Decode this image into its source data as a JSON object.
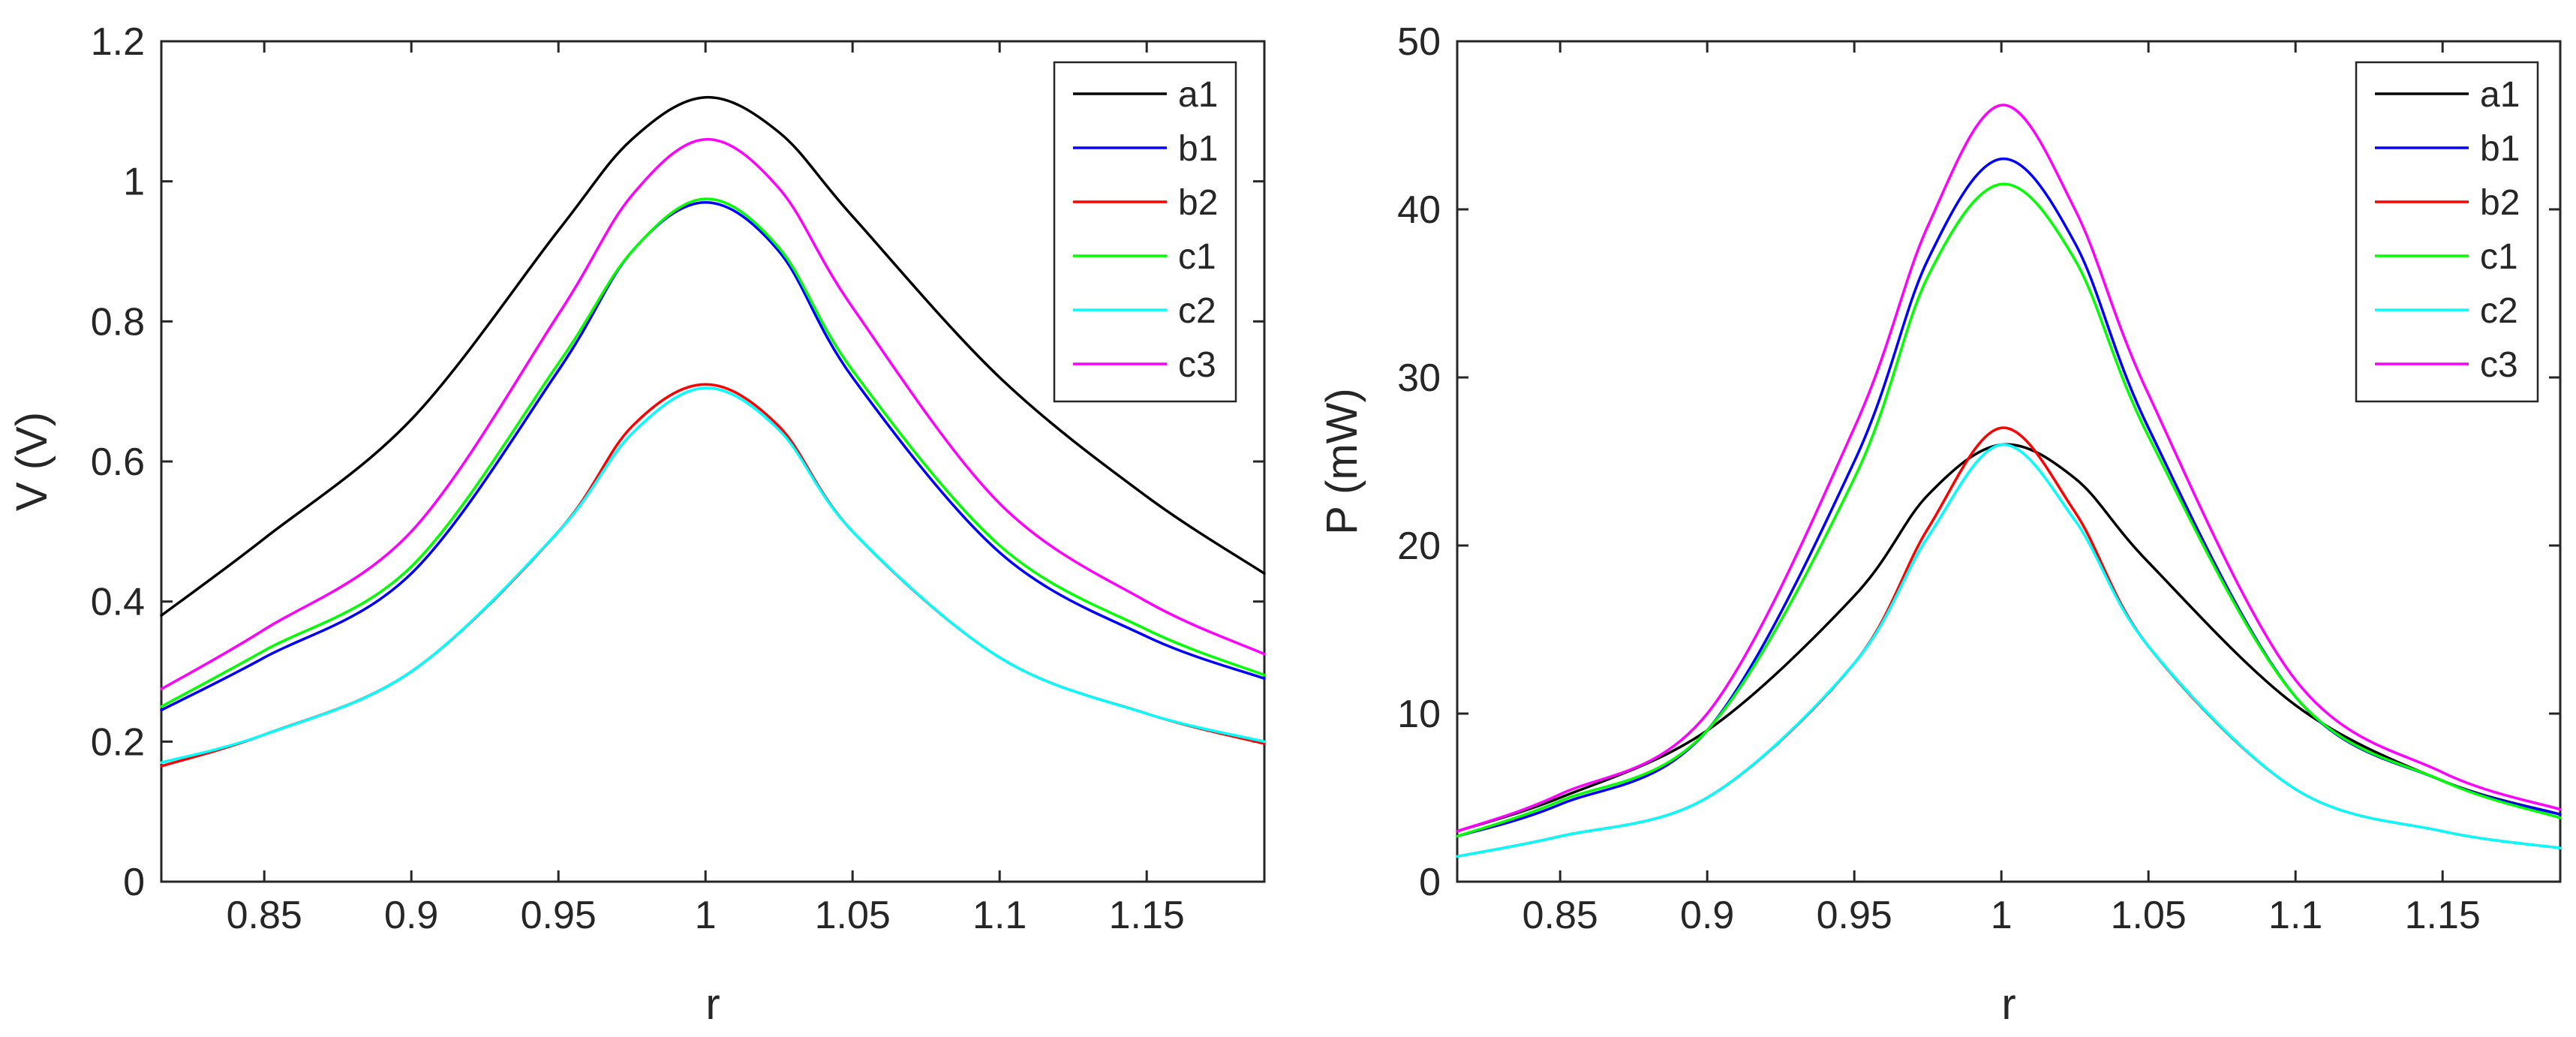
{
  "chart_data": [
    {
      "type": "line",
      "title": "",
      "xlabel": "r",
      "ylabel": "V (V)",
      "xlim": [
        0.815,
        1.19
      ],
      "ylim": [
        0,
        1.2
      ],
      "xticks": [
        0.85,
        0.9,
        0.95,
        1,
        1.05,
        1.1,
        1.15
      ],
      "xtick_labels": [
        "0.85",
        "0.9",
        "0.95",
        "1",
        "1.05",
        "1.1",
        "1.15"
      ],
      "yticks": [
        0,
        0.2,
        0.4,
        0.6,
        0.8,
        1,
        1.2
      ],
      "ytick_labels": [
        "0",
        "0.2",
        "0.4",
        "0.6",
        "0.8",
        "1",
        "1.2"
      ],
      "grid": false,
      "legend_position": "top-right",
      "x": [
        0.815,
        0.85,
        0.9,
        0.95,
        0.975,
        1.0,
        1.025,
        1.05,
        1.1,
        1.15,
        1.19
      ],
      "series": [
        {
          "name": "a1",
          "color": "#000000",
          "values": [
            0.38,
            0.49,
            0.66,
            0.93,
            1.06,
            1.12,
            1.07,
            0.95,
            0.72,
            0.55,
            0.44
          ]
        },
        {
          "name": "b1",
          "color": "#0000ff",
          "values": [
            0.245,
            0.32,
            0.44,
            0.73,
            0.9,
            0.97,
            0.9,
            0.72,
            0.47,
            0.35,
            0.29
          ]
        },
        {
          "name": "b2",
          "color": "#ff0000",
          "values": [
            0.165,
            0.21,
            0.3,
            0.5,
            0.65,
            0.71,
            0.65,
            0.5,
            0.32,
            0.24,
            0.197
          ]
        },
        {
          "name": "c1",
          "color": "#00ff00",
          "values": [
            0.25,
            0.33,
            0.45,
            0.74,
            0.9,
            0.975,
            0.905,
            0.73,
            0.48,
            0.36,
            0.295
          ]
        },
        {
          "name": "c2",
          "color": "#00ffff",
          "values": [
            0.17,
            0.21,
            0.3,
            0.5,
            0.64,
            0.705,
            0.645,
            0.5,
            0.32,
            0.24,
            0.2
          ]
        },
        {
          "name": "c3",
          "color": "#ff00ff",
          "values": [
            0.275,
            0.36,
            0.5,
            0.81,
            0.98,
            1.06,
            0.99,
            0.82,
            0.54,
            0.4,
            0.325
          ]
        }
      ]
    },
    {
      "type": "line",
      "title": "",
      "xlabel": "r",
      "ylabel": "P (mW)",
      "xlim": [
        0.815,
        1.19
      ],
      "ylim": [
        0,
        50
      ],
      "xticks": [
        0.85,
        0.9,
        0.95,
        1,
        1.05,
        1.1,
        1.15
      ],
      "xtick_labels": [
        "0.85",
        "0.9",
        "0.95",
        "1",
        "1.05",
        "1.1",
        "1.15"
      ],
      "yticks": [
        0,
        10,
        20,
        30,
        40,
        50
      ],
      "ytick_labels": [
        "0",
        "10",
        "20",
        "30",
        "40",
        "50"
      ],
      "grid": false,
      "legend_position": "top-right",
      "x": [
        0.815,
        0.85,
        0.9,
        0.95,
        0.975,
        1.0,
        1.025,
        1.05,
        1.1,
        1.15,
        1.19
      ],
      "series": [
        {
          "name": "a1",
          "color": "#000000",
          "values": [
            3.0,
            5.0,
            9.0,
            17.0,
            23.0,
            26.0,
            24.0,
            19.0,
            10.5,
            6.0,
            4.0
          ]
        },
        {
          "name": "b1",
          "color": "#0000ff",
          "values": [
            2.7,
            4.6,
            9.0,
            25.0,
            37.0,
            43.0,
            38.0,
            27.0,
            11.0,
            6.0,
            4.0
          ]
        },
        {
          "name": "b2",
          "color": "#ff0000",
          "values": [
            1.5,
            2.7,
            5.0,
            13.0,
            21.0,
            27.0,
            22.0,
            14.0,
            5.5,
            3.0,
            2.0
          ]
        },
        {
          "name": "c1",
          "color": "#00ff00",
          "values": [
            2.7,
            4.8,
            9.0,
            24.0,
            36.0,
            41.5,
            37.0,
            26.5,
            11.0,
            6.0,
            3.8
          ]
        },
        {
          "name": "c2",
          "color": "#00ffff",
          "values": [
            1.5,
            2.7,
            5.0,
            13.0,
            20.5,
            26.0,
            21.5,
            14.0,
            5.5,
            3.0,
            2.0
          ]
        },
        {
          "name": "c3",
          "color": "#ff00ff",
          "values": [
            3.0,
            5.2,
            10.0,
            27.0,
            39.0,
            46.2,
            40.0,
            29.0,
            12.0,
            6.5,
            4.3
          ]
        }
      ]
    }
  ]
}
